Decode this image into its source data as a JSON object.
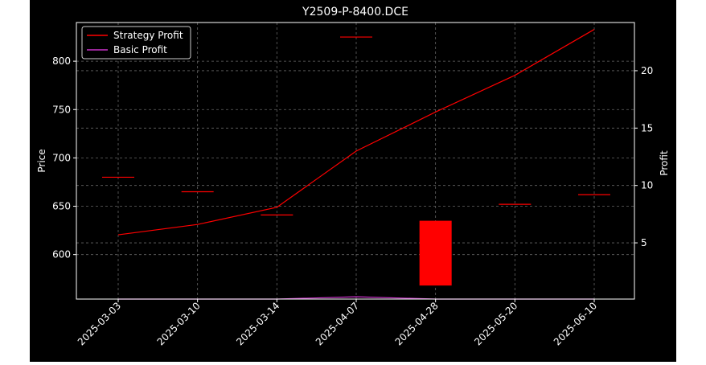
{
  "chart_data": {
    "type": "candlestick+line",
    "title": "Y2509-P-8400.DCE",
    "ylabel_left": "Price",
    "ylabel_right": "Profit",
    "x": [
      "2025-03-03",
      "2025-03-10",
      "2025-03-14",
      "2025-04-07",
      "2025-04-28",
      "2025-05-20",
      "2025-06-10"
    ],
    "grid": true,
    "legend_position": "upper-left",
    "price_axis": {
      "ylim": [
        554,
        840
      ],
      "ticks": [
        600,
        650,
        700,
        750,
        800
      ]
    },
    "profit_axis": {
      "ylim": [
        0.1,
        24.2
      ],
      "ticks": [
        5,
        10,
        15,
        20
      ]
    },
    "candles": [
      {
        "x": "2025-03-03",
        "open": 680,
        "close": 680
      },
      {
        "x": "2025-03-10",
        "open": 665,
        "close": 665
      },
      {
        "x": "2025-03-14",
        "open": 641,
        "close": 641
      },
      {
        "x": "2025-04-07",
        "open": 825,
        "close": 825
      },
      {
        "x": "2025-04-28",
        "open": 635,
        "close": 568
      },
      {
        "x": "2025-05-20",
        "open": 652,
        "close": 652
      },
      {
        "x": "2025-06-10",
        "open": 662,
        "close": 662
      }
    ],
    "series": [
      {
        "name": "Strategy Profit",
        "color": "#ff0000",
        "axis": "right",
        "values": [
          5.7,
          6.6,
          8.1,
          13.0,
          16.4,
          19.6,
          23.6
        ]
      },
      {
        "name": "Basic Profit",
        "color": "#cc33cc",
        "axis": "right",
        "values": [
          0.1,
          0.1,
          0.1,
          0.3,
          0.1,
          0.1,
          0.1
        ]
      }
    ],
    "candle_color": "#ff0000"
  }
}
